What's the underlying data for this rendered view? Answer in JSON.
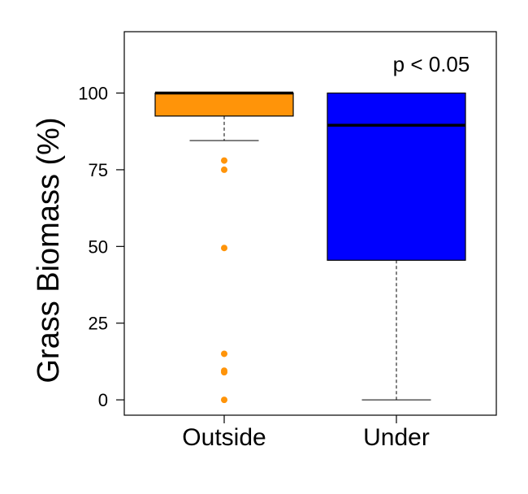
{
  "chart_data": {
    "type": "boxplot",
    "ylabel": "Grass Biomass (%)",
    "annotation": "p < 0.05",
    "ylim": [
      -5,
      120
    ],
    "yticks": [
      0,
      25,
      50,
      75,
      100
    ],
    "categories": [
      "Outside",
      "Under"
    ],
    "boxes": [
      {
        "category": "Outside",
        "color": "#FF9409",
        "whisker_low": 84.5,
        "q1": 92.5,
        "median": 100,
        "q3": 100,
        "whisker_high": 100,
        "outliers": [
          78,
          75,
          49.5,
          15,
          9.5,
          9,
          0
        ]
      },
      {
        "category": "Under",
        "color": "#0000FF",
        "whisker_low": 0,
        "q1": 45.5,
        "median": 89.5,
        "q3": 100,
        "whisker_high": 100,
        "outliers": []
      }
    ]
  }
}
